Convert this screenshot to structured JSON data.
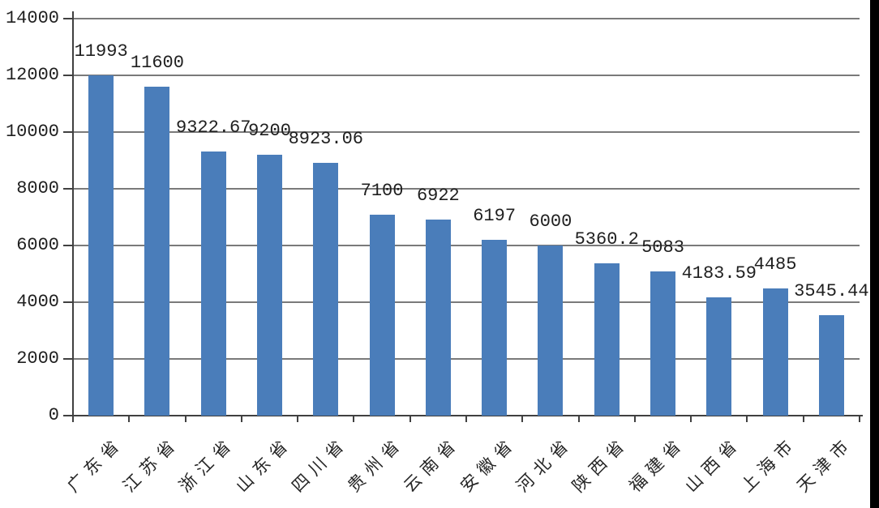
{
  "chart_data": {
    "type": "bar",
    "title": "",
    "xlabel": "",
    "ylabel": "",
    "categories": [
      "广东省",
      "江苏省",
      "浙江省",
      "山东省",
      "四川省",
      "贵州省",
      "云南省",
      "安徽省",
      "河北省",
      "陕西省",
      "福建省",
      "山西省",
      "上海市",
      "天津市"
    ],
    "values": [
      11993,
      11600,
      9322.67,
      9200,
      8923.06,
      7100,
      6922,
      6197,
      6000,
      5360.2,
      5083,
      4183.59,
      4485,
      3545.44
    ],
    "value_labels": [
      "11993",
      "11600",
      "9322.67",
      "9200",
      "8923.06",
      "7100",
      "6922",
      "6197",
      "6000",
      "5360.2",
      "5083",
      "4183.59",
      "4485",
      "3545.44"
    ],
    "ylim": [
      0,
      14000
    ],
    "y_ticks": [
      0,
      2000,
      4000,
      6000,
      8000,
      10000,
      12000,
      14000
    ],
    "y_tick_labels": [
      "0",
      "2000",
      "4000",
      "6000",
      "8000",
      "10000",
      "12000",
      "14000"
    ],
    "grid": true,
    "legend": false,
    "x_label_rotation_deg": -45,
    "colors": {
      "bar": "#4A7DBA",
      "gridline": "#7a7a7a",
      "axis": "#404040",
      "text": "#1f1f1f",
      "background": "#ffffff",
      "screen_edge_strip": "#000000"
    }
  }
}
